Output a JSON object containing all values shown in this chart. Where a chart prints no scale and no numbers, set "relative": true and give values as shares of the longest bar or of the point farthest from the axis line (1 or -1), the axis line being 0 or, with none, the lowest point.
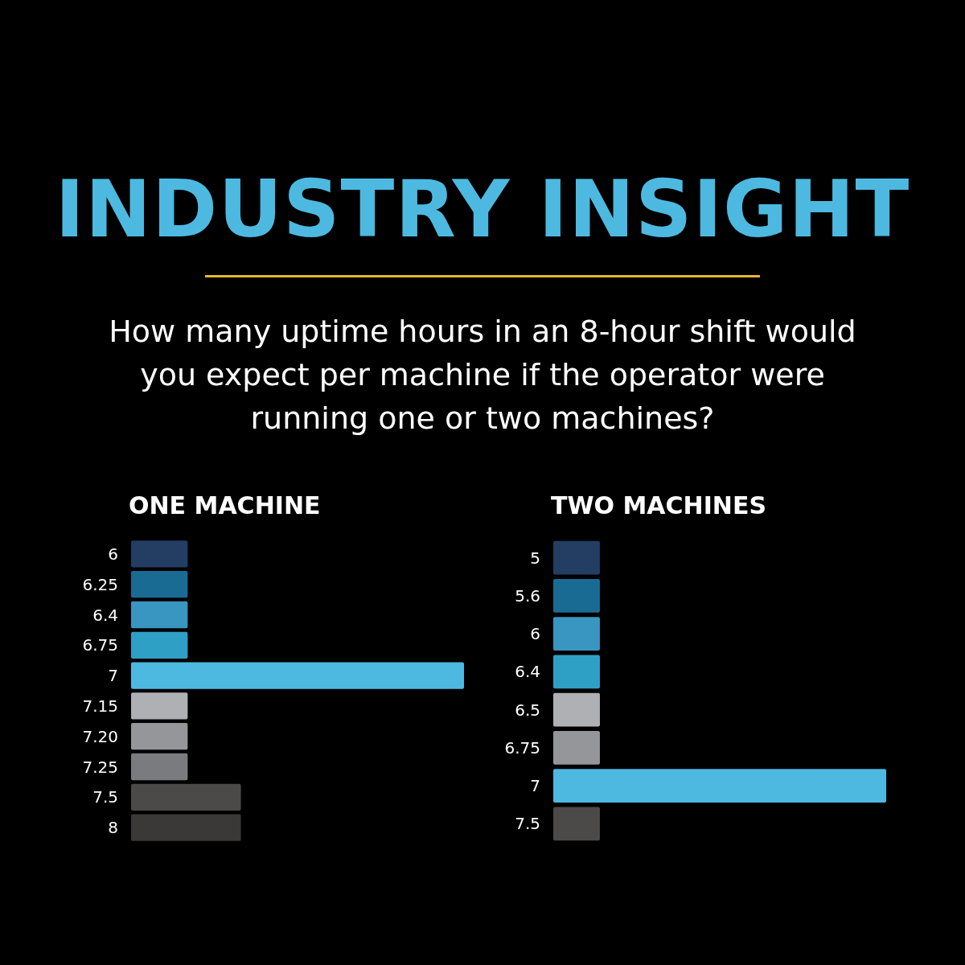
{
  "chart_data": [
    {
      "type": "other",
      "title": "INDUSTRY INSIGHT",
      "subtitle": "How many uptime hours in an 8-hour shift would you expect per machine if the operator were running one or two machines?"
    },
    {
      "type": "bar",
      "orientation": "horizontal",
      "relative": true,
      "title": "ONE MACHINE",
      "categories": [
        "6",
        "6.25",
        "6.4",
        "6.75",
        "7",
        "7.15",
        "7.20",
        "7.25",
        "7.5",
        "8"
      ],
      "values": [
        0.17,
        0.17,
        0.17,
        0.17,
        1,
        0.17,
        0.17,
        0.17,
        0.33,
        0.33
      ],
      "colors": [
        "#233d63",
        "#1a6b94",
        "#3896c1",
        "#2fa0c5",
        "#4db9e0",
        "#afb0b4",
        "#959699",
        "#7a7b7f",
        "#4b4a48",
        "#3a3937"
      ]
    },
    {
      "type": "bar",
      "orientation": "horizontal",
      "relative": true,
      "title": "TWO MACHINES",
      "categories": [
        "5",
        "5.6",
        "6",
        "6.4",
        "6.5",
        "6.75",
        "7",
        "7.5"
      ],
      "values": [
        0.14,
        0.14,
        0.14,
        0.14,
        0.14,
        0.14,
        1,
        0.14
      ],
      "colors": [
        "#233d63",
        "#1a6b94",
        "#3896c1",
        "#2fa0c5",
        "#afb0b4",
        "#959699",
        "#4db9e0",
        "#4b4a48"
      ]
    }
  ]
}
